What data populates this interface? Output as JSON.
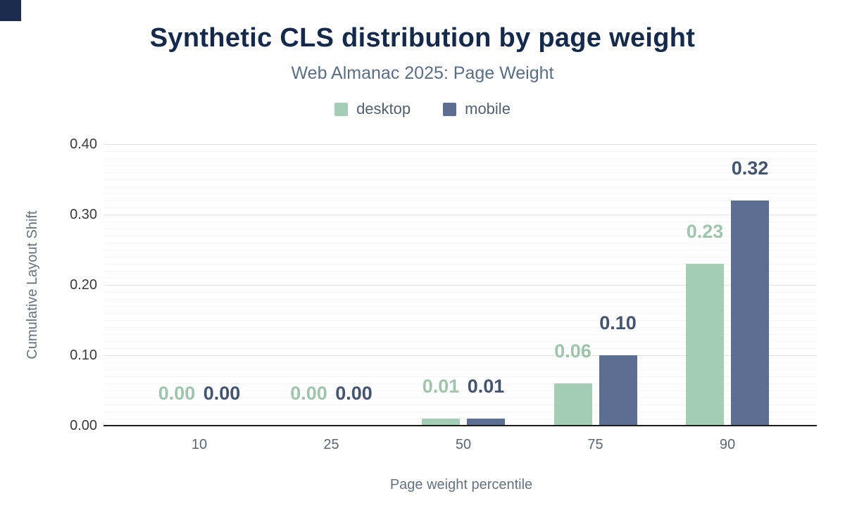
{
  "accent": {
    "corner_color": "#1b2b4d"
  },
  "chart_data": {
    "type": "bar",
    "title": "Synthetic CLS distribution by page weight",
    "subtitle": "Web Almanac 2025: Page Weight",
    "categories": [
      "10",
      "25",
      "50",
      "75",
      "90"
    ],
    "series": [
      {
        "name": "desktop",
        "color": "#a4cdb5",
        "label_color": "#9fc3ad",
        "values": [
          0.0,
          0.0,
          0.01,
          0.06,
          0.23
        ],
        "value_labels": [
          "0.00",
          "0.00",
          "0.01",
          "0.06",
          "0.23"
        ]
      },
      {
        "name": "mobile",
        "color": "#5c6e91",
        "label_color": "#44536e",
        "values": [
          0.0,
          0.0,
          0.01,
          0.1,
          0.32
        ],
        "value_labels": [
          "0.00",
          "0.00",
          "0.01",
          "0.10",
          "0.32"
        ]
      }
    ],
    "xlabel": "Page weight percentile",
    "ylabel": "Cumulative Layout Shift",
    "ylim": [
      0,
      0.4
    ],
    "yticks": [
      0,
      0.1,
      0.2,
      0.3,
      0.4
    ],
    "ytick_labels": [
      "0.00",
      "0.10",
      "0.20",
      "0.30",
      "0.40"
    ],
    "grid": {
      "orientation": "horizontal",
      "major_interval": 0.1,
      "minor_interval": 0.01
    },
    "legend_position": "top-center"
  }
}
